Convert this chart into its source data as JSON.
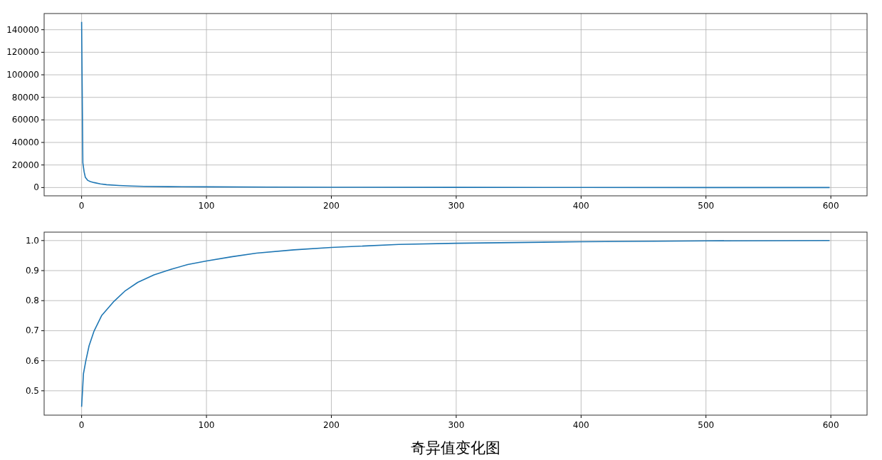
{
  "chart_data": [
    {
      "type": "line",
      "x": [
        0,
        1,
        2,
        3,
        5,
        7,
        10,
        15,
        20,
        30,
        40,
        50,
        70,
        100,
        150,
        200,
        300,
        400,
        500,
        599
      ],
      "series": [
        {
          "color": "#1f77b4",
          "values": [
            147000,
            22000,
            14000,
            9000,
            6300,
            5300,
            4400,
            3200,
            2500,
            1800,
            1300,
            1000,
            800,
            600,
            400,
            250,
            120,
            60,
            20,
            0
          ]
        }
      ],
      "xlim": [
        -30,
        629
      ],
      "ylim": [
        -7350,
        154350
      ],
      "xticks": [
        0,
        100,
        200,
        300,
        400,
        500,
        600
      ],
      "yticks": [
        0,
        20000,
        40000,
        60000,
        80000,
        100000,
        120000,
        140000
      ],
      "grid": true,
      "line_style": "solid",
      "marker": "none"
    },
    {
      "type": "line",
      "x": [
        0,
        1,
        1.5,
        3.4,
        6,
        10,
        16,
        26,
        35,
        45,
        58,
        72,
        85,
        100,
        120,
        140,
        170,
        200,
        254,
        300,
        400,
        500,
        599
      ],
      "series": [
        {
          "color": "#1f77b4",
          "values": [
            0.447,
            0.52,
            0.557,
            0.6,
            0.65,
            0.699,
            0.75,
            0.798,
            0.833,
            0.861,
            0.886,
            0.905,
            0.92,
            0.932,
            0.946,
            0.958,
            0.969,
            0.977,
            0.987,
            0.991,
            0.996,
            0.999,
            1.0
          ]
        }
      ],
      "xlim": [
        -30,
        629
      ],
      "ylim": [
        0.419,
        1.028
      ],
      "xticks": [
        0,
        100,
        200,
        300,
        400,
        500,
        600
      ],
      "yticks": [
        {
          "value": 0.5,
          "label": "0.5"
        },
        {
          "value": 0.6,
          "label": "0.6"
        },
        {
          "value": 0.7,
          "label": "0.7"
        },
        {
          "value": 0.8,
          "label": "0.8"
        },
        {
          "value": 0.9,
          "label": "0.9"
        },
        {
          "value": 1.0,
          "label": "1.0"
        }
      ],
      "grid": true,
      "line_style": "solid",
      "marker": "none",
      "xlabel": "奇异值变化图"
    }
  ]
}
